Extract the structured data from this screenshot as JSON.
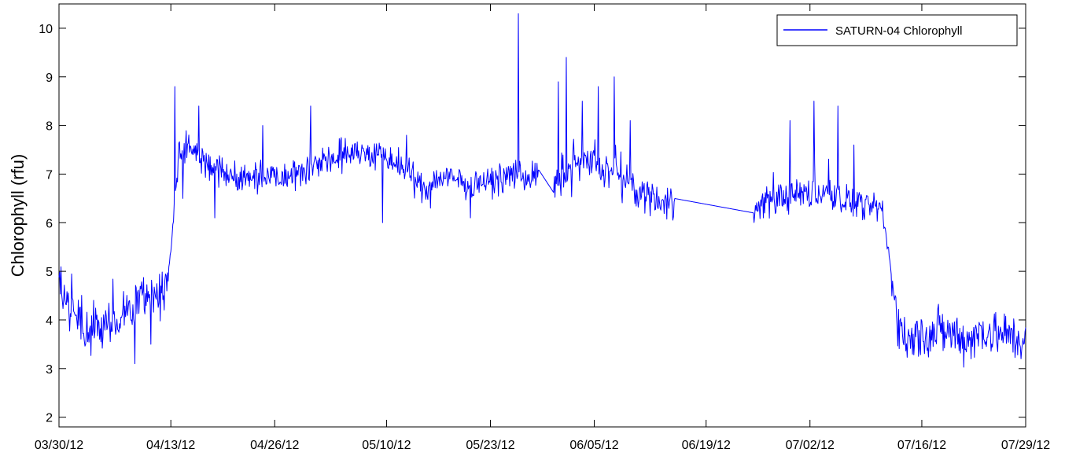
{
  "chart_data": {
    "type": "line",
    "title": "",
    "xlabel": "",
    "ylabel": "Chlorophyll (rfu)",
    "xlim": [
      "2012-03-30",
      "2012-07-29"
    ],
    "ylim": [
      1.8,
      10.5
    ],
    "x_tick_labels": [
      "03/30/12",
      "04/13/12",
      "04/26/12",
      "05/10/12",
      "05/23/12",
      "06/05/12",
      "06/19/12",
      "07/02/12",
      "07/16/12",
      "07/29/12"
    ],
    "x_tick_dates": [
      "2012-03-30",
      "2012-04-13",
      "2012-04-26",
      "2012-05-10",
      "2012-05-23",
      "2012-06-05",
      "2012-06-19",
      "2012-07-02",
      "2012-07-16",
      "2012-07-29"
    ],
    "y_ticks": [
      2,
      3,
      4,
      5,
      6,
      7,
      8,
      9,
      10
    ],
    "legend": {
      "position": "top-right",
      "entries": [
        "SATURN-04 Chlorophyll"
      ]
    },
    "grid": false,
    "colors": {
      "series": "#0000ff",
      "axes": "#000000",
      "background": "#ffffff"
    },
    "series": [
      {
        "name": "SATURN-04 Chlorophyll",
        "points": [
          [
            "2012-03-30",
            4.6
          ],
          [
            "2012-03-31",
            4.3
          ],
          [
            "2012-04-01",
            4.2
          ],
          [
            "2012-04-02",
            3.8
          ],
          [
            "2012-04-03",
            3.7
          ],
          [
            "2012-04-04",
            3.9
          ],
          [
            "2012-04-05",
            4.0
          ],
          [
            "2012-04-06",
            4.0
          ],
          [
            "2012-04-07",
            4.1
          ],
          [
            "2012-04-08",
            4.2
          ],
          [
            "2012-04-09",
            4.4
          ],
          [
            "2012-04-10",
            4.5
          ],
          [
            "2012-04-11",
            4.6
          ],
          [
            "2012-04-12",
            4.4
          ],
          [
            "2012-04-13",
            5.5
          ],
          [
            "2012-04-14",
            7.5
          ],
          [
            "2012-04-15",
            7.6
          ],
          [
            "2012-04-16",
            7.4
          ],
          [
            "2012-04-18",
            7.2
          ],
          [
            "2012-04-20",
            7.0
          ],
          [
            "2012-04-22",
            6.9
          ],
          [
            "2012-04-24",
            7.0
          ],
          [
            "2012-04-26",
            7.0
          ],
          [
            "2012-04-28",
            7.0
          ],
          [
            "2012-04-30",
            7.1
          ],
          [
            "2012-05-02",
            7.3
          ],
          [
            "2012-05-04",
            7.3
          ],
          [
            "2012-05-06",
            7.5
          ],
          [
            "2012-05-08",
            7.4
          ],
          [
            "2012-05-10",
            7.3
          ],
          [
            "2012-05-12",
            7.1
          ],
          [
            "2012-05-14",
            6.8
          ],
          [
            "2012-05-15",
            6.7
          ],
          [
            "2012-05-16",
            6.9
          ],
          [
            "2012-05-18",
            6.9
          ],
          [
            "2012-05-20",
            6.8
          ],
          [
            "2012-05-22",
            6.8
          ],
          [
            "2012-05-24",
            6.9
          ],
          [
            "2012-05-26",
            7.0
          ],
          [
            "2012-05-28",
            6.9
          ],
          [
            "2012-05-29",
            7.1
          ],
          [
            "2012-05-31",
            6.6
          ],
          [
            "2012-06-01",
            7.0
          ],
          [
            "2012-06-03",
            7.2
          ],
          [
            "2012-06-05",
            7.2
          ],
          [
            "2012-06-07",
            7.0
          ],
          [
            "2012-06-09",
            6.8
          ],
          [
            "2012-06-11",
            6.6
          ],
          [
            "2012-06-13",
            6.5
          ],
          [
            "2012-06-14",
            6.4
          ],
          [
            "2012-06-15",
            6.5
          ],
          [
            "2012-06-25",
            6.2
          ],
          [
            "2012-06-26",
            6.4
          ],
          [
            "2012-06-28",
            6.5
          ],
          [
            "2012-06-30",
            6.6
          ],
          [
            "2012-07-02",
            6.6
          ],
          [
            "2012-07-04",
            6.6
          ],
          [
            "2012-07-06",
            6.5
          ],
          [
            "2012-07-08",
            6.4
          ],
          [
            "2012-07-10",
            6.3
          ],
          [
            "2012-07-11",
            6.3
          ],
          [
            "2012-07-13",
            4.0
          ],
          [
            "2012-07-14",
            3.5
          ],
          [
            "2012-07-16",
            3.7
          ],
          [
            "2012-07-18",
            3.8
          ],
          [
            "2012-07-20",
            3.7
          ],
          [
            "2012-07-22",
            3.6
          ],
          [
            "2012-07-24",
            3.8
          ],
          [
            "2012-07-26",
            3.7
          ],
          [
            "2012-07-28",
            3.6
          ],
          [
            "2012-07-29",
            3.7
          ]
        ],
        "noise_amplitude": [
          [
            "2012-03-30",
            0.35
          ],
          [
            "2012-04-12",
            0.35
          ],
          [
            "2012-04-14",
            0.25
          ],
          [
            "2012-05-29",
            0.2
          ],
          [
            "2012-06-01",
            0.3
          ],
          [
            "2012-06-15",
            0.25
          ],
          [
            "2012-06-26",
            0.25
          ],
          [
            "2012-07-11",
            0.2
          ],
          [
            "2012-07-14",
            0.35
          ],
          [
            "2012-07-29",
            0.35
          ]
        ],
        "gaps": [
          [
            "2012-05-29",
            "2012-05-31"
          ],
          [
            "2012-06-15",
            "2012-06-25"
          ]
        ],
        "spikes": [
          [
            "2012-04-14",
            8.8
          ],
          [
            "2012-04-17",
            8.4
          ],
          [
            "2012-04-25",
            8.0
          ],
          [
            "2012-05-01",
            8.4
          ],
          [
            "2012-05-13",
            7.8
          ],
          [
            "2012-05-27",
            10.3
          ],
          [
            "2012-06-01",
            8.9
          ],
          [
            "2012-06-02",
            9.4
          ],
          [
            "2012-06-04",
            8.5
          ],
          [
            "2012-06-06",
            8.8
          ],
          [
            "2012-06-08",
            9.0
          ],
          [
            "2012-06-10",
            8.1
          ],
          [
            "2012-06-30",
            8.1
          ],
          [
            "2012-07-03",
            8.5
          ],
          [
            "2012-07-06",
            8.4
          ],
          [
            "2012-07-08",
            7.6
          ]
        ],
        "dips": [
          [
            "2012-04-09",
            3.1
          ],
          [
            "2012-04-11",
            3.5
          ],
          [
            "2012-04-15",
            6.5
          ],
          [
            "2012-04-19",
            6.1
          ],
          [
            "2012-05-10",
            6.0
          ],
          [
            "2012-05-16",
            6.3
          ],
          [
            "2012-05-21",
            6.1
          ]
        ]
      }
    ]
  }
}
